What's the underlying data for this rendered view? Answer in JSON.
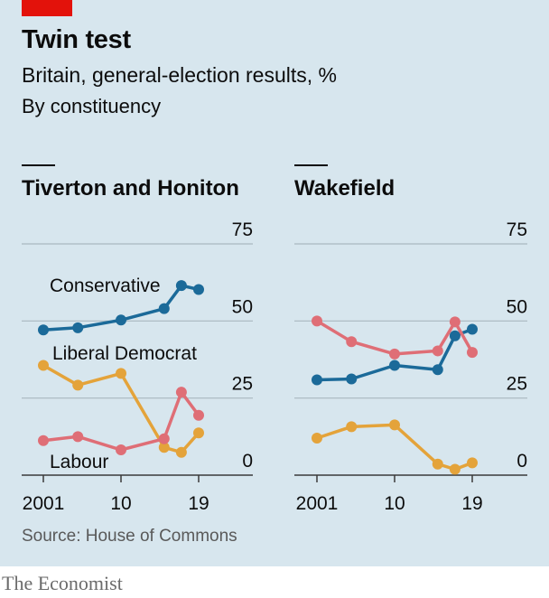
{
  "header": {
    "title": "Twin test",
    "subtitle": "Britain, general-election results, %",
    "subsubtitle": "By constituency"
  },
  "footer": {
    "source": "Source: House of Commons",
    "brand": "The Economist"
  },
  "colors": {
    "conservative": "#1b6a99",
    "labour": "#e4a33a",
    "libdem": "#df6e76",
    "grid": "#a9b8c0",
    "accent": "#e3120b"
  },
  "chart_data": [
    {
      "type": "line",
      "title": "Tiverton and Honiton",
      "x_tick_labels": [
        "2001",
        "10",
        "19"
      ],
      "x_ticks": [
        2001,
        2010,
        2019
      ],
      "y_ticks": [
        0,
        25,
        50,
        75
      ],
      "ylim": [
        0,
        75
      ],
      "x": [
        2001,
        2005,
        2010,
        2015,
        2017,
        2019
      ],
      "series": [
        {
          "name": "Conservative",
          "color": "#1b6a99",
          "values": [
            47.1,
            47.8,
            50.3,
            54.0,
            61.5,
            60.2
          ]
        },
        {
          "name": "Liberal Democrat",
          "color": "#e4a33a",
          "values": [
            35.6,
            29.2,
            33.0,
            9.0,
            7.4,
            13.7
          ]
        },
        {
          "name": "Labour",
          "color": "#df6e76",
          "values": [
            11.2,
            12.5,
            8.2,
            11.8,
            26.9,
            19.4
          ]
        }
      ],
      "labels": [
        "Conservative",
        "Liberal Democrat",
        "Labour"
      ]
    },
    {
      "type": "line",
      "title": "Wakefield",
      "x_tick_labels": [
        "2001",
        "10",
        "19"
      ],
      "x_ticks": [
        2001,
        2010,
        2019
      ],
      "y_ticks": [
        0,
        25,
        50,
        75
      ],
      "ylim": [
        0,
        75
      ],
      "x": [
        2001,
        2005,
        2010,
        2015,
        2017,
        2019
      ],
      "series": [
        {
          "name": "Conservative",
          "color": "#1b6a99",
          "values": [
            30.9,
            31.2,
            35.6,
            34.2,
            45.2,
            47.3
          ]
        },
        {
          "name": "Labour",
          "color": "#df6e76",
          "values": [
            50.0,
            43.3,
            39.3,
            40.3,
            49.7,
            39.8
          ]
        },
        {
          "name": "Liberal Democrat",
          "color": "#e4a33a",
          "values": [
            12.0,
            15.7,
            16.3,
            3.6,
            1.9,
            4.0
          ]
        }
      ],
      "labels": []
    }
  ]
}
